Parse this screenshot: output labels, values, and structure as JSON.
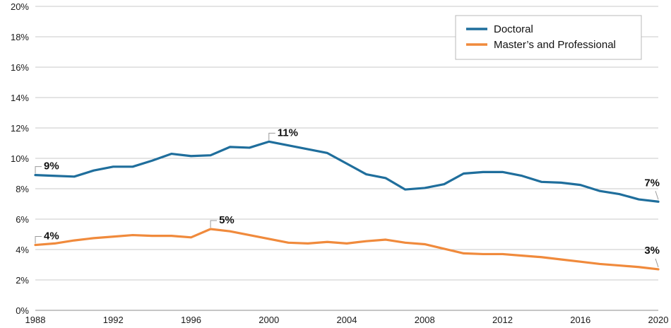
{
  "chart_data": {
    "type": "line",
    "title": "",
    "xlabel": "",
    "ylabel": "",
    "x": [
      1988,
      1989,
      1990,
      1991,
      1992,
      1993,
      1994,
      1995,
      1996,
      1997,
      1998,
      1999,
      2000,
      2001,
      2002,
      2003,
      2004,
      2005,
      2006,
      2007,
      2008,
      2009,
      2010,
      2011,
      2012,
      2013,
      2014,
      2015,
      2016,
      2017,
      2018,
      2019,
      2020
    ],
    "xticks": [
      1988,
      1992,
      1996,
      2000,
      2004,
      2008,
      2012,
      2016,
      2020
    ],
    "xtick_labels": [
      "1988",
      "1992",
      "1996",
      "2000",
      "2004",
      "2008",
      "2012",
      "2016",
      "2020"
    ],
    "xlim": [
      1988,
      2020
    ],
    "ylim": [
      0,
      20
    ],
    "yticks": [
      0,
      2,
      4,
      6,
      8,
      10,
      12,
      14,
      16,
      18,
      20
    ],
    "ytick_labels": [
      "0%",
      "2%",
      "4%",
      "6%",
      "8%",
      "10%",
      "12%",
      "14%",
      "16%",
      "18%",
      "20%"
    ],
    "grid": true,
    "legend_position": "top-right",
    "series": [
      {
        "name": "Doctoral",
        "color": "#1f6e9c",
        "values": [
          8.9,
          8.85,
          8.8,
          9.2,
          9.45,
          9.45,
          9.85,
          10.3,
          10.15,
          10.2,
          10.75,
          10.7,
          11.1,
          10.85,
          10.6,
          10.35,
          9.65,
          8.95,
          8.7,
          7.95,
          8.05,
          8.3,
          9.0,
          9.1,
          9.1,
          8.85,
          8.45,
          8.4,
          8.25,
          7.85,
          7.65,
          7.3,
          7.15
        ],
        "labels": [
          {
            "index": 0,
            "text": "9%"
          },
          {
            "index": 12,
            "text": "11%"
          },
          {
            "index": 32,
            "text": "7%"
          }
        ]
      },
      {
        "name": "Master’s and Professional",
        "color": "#f08a3c",
        "values": [
          4.3,
          4.4,
          4.6,
          4.75,
          4.85,
          4.95,
          4.9,
          4.9,
          4.8,
          5.35,
          5.2,
          4.95,
          4.7,
          4.45,
          4.4,
          4.5,
          4.4,
          4.55,
          4.65,
          4.45,
          4.35,
          4.05,
          3.75,
          3.7,
          3.7,
          3.6,
          3.5,
          3.35,
          3.2,
          3.05,
          2.95,
          2.85,
          2.7
        ],
        "labels": [
          {
            "index": 0,
            "text": "4%"
          },
          {
            "index": 9,
            "text": "5%"
          },
          {
            "index": 32,
            "text": "3%"
          }
        ]
      }
    ]
  }
}
